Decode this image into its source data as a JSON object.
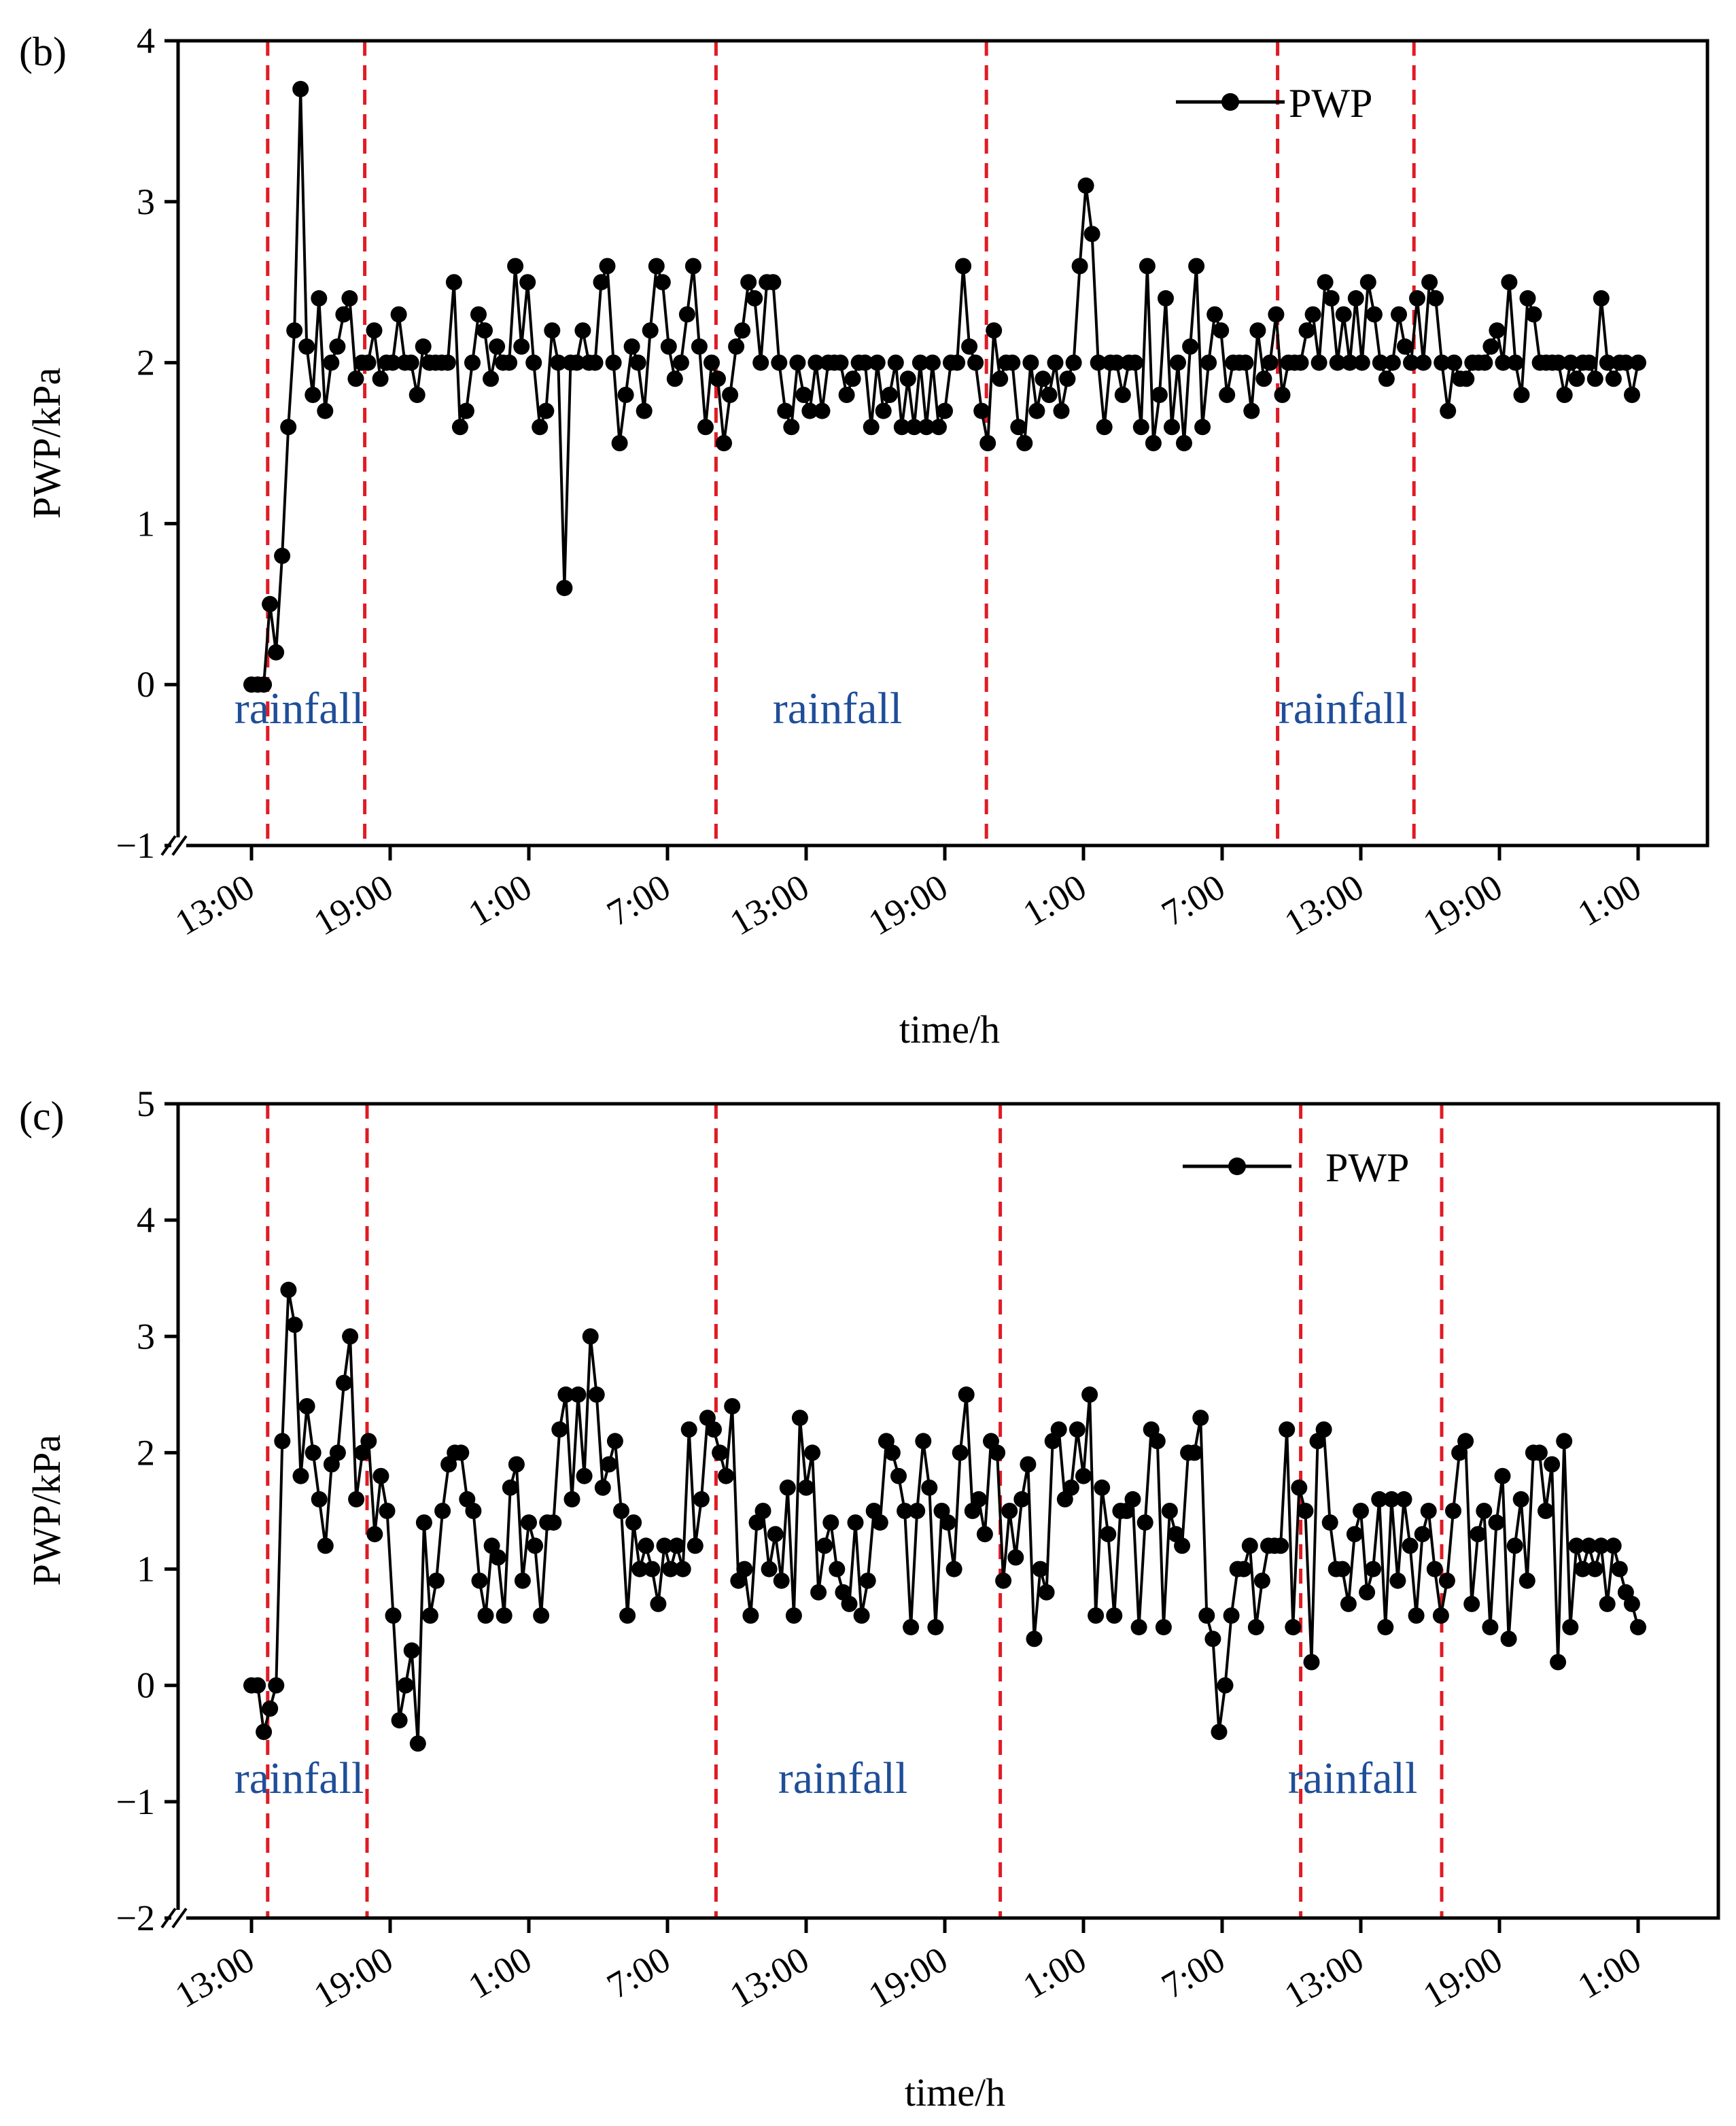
{
  "chart_data": [
    {
      "type": "line",
      "panel_label": "(b)",
      "title": "",
      "xlabel": "time/h",
      "ylabel": "PWP/kPa",
      "ylim": [
        -1,
        4
      ],
      "yticks": [
        -1,
        0,
        1,
        2,
        3,
        4
      ],
      "xtick_labels": [
        "13:00",
        "19:00",
        "1:00",
        "7:00",
        "13:00",
        "19:00",
        "1:00",
        "7:00",
        "13:00",
        "19:00",
        "1:00"
      ],
      "x_unit": "hours since first tick (13:00)",
      "x_range": [
        -1,
        61
      ],
      "legend": "PWP",
      "legend_position": "top-right",
      "rainfall_label": "rainfall",
      "rainfall_periods": [
        [
          0.7,
          4.9
        ],
        [
          20.1,
          31.8
        ],
        [
          44.4,
          50.3
        ]
      ],
      "colors": {
        "series": "#000000",
        "boundary": "#e01b24",
        "rainfall_text": "#1f4e99"
      },
      "series": [
        {
          "name": "PWP",
          "values": [
            0,
            0,
            0,
            0.5,
            0.2,
            0.8,
            1.6,
            2.2,
            3.7,
            2.1,
            1.8,
            2.4,
            1.7,
            2.0,
            2.1,
            2.3,
            2.4,
            1.9,
            2.0,
            2.0,
            2.2,
            1.9,
            2.0,
            2.0,
            2.3,
            2.0,
            2.0,
            1.8,
            2.1,
            2.0,
            2.0,
            2.0,
            2.0,
            2.5,
            1.6,
            1.7,
            2.0,
            2.3,
            2.2,
            1.9,
            2.1,
            2.0,
            2.0,
            2.6,
            2.1,
            2.5,
            2.0,
            1.6,
            1.7,
            2.2,
            2.0,
            0.6,
            2.0,
            2.0,
            2.2,
            2.0,
            2.0,
            2.5,
            2.6,
            2.0,
            1.5,
            1.8,
            2.1,
            2.0,
            1.7,
            2.2,
            2.6,
            2.5,
            2.1,
            1.9,
            2.0,
            2.3,
            2.6,
            2.1,
            1.6,
            2.0,
            1.9,
            1.5,
            1.8,
            2.1,
            2.2,
            2.5,
            2.4,
            2.0,
            2.5,
            2.5,
            2.0,
            1.7,
            1.6,
            2.0,
            1.8,
            1.7,
            2.0,
            1.7,
            2.0,
            2.0,
            2.0,
            1.8,
            1.9,
            2.0,
            2.0,
            1.6,
            2.0,
            1.7,
            1.8,
            2.0,
            1.6,
            1.9,
            1.6,
            2.0,
            1.6,
            2.0,
            1.6,
            1.7,
            2.0,
            2.0,
            2.6,
            2.1,
            2.0,
            1.7,
            1.5,
            2.2,
            1.9,
            2.0,
            2.0,
            1.6,
            1.5,
            2.0,
            1.7,
            1.9,
            1.8,
            2.0,
            1.7,
            1.9,
            2.0,
            2.6,
            3.1,
            2.8,
            2.0,
            1.6,
            2.0,
            2.0,
            1.8,
            2.0,
            2.0,
            1.6,
            2.6,
            1.5,
            1.8,
            2.4,
            1.6,
            2.0,
            1.5,
            2.1,
            2.6,
            1.6,
            2.0,
            2.3,
            2.2,
            1.8,
            2.0,
            2.0,
            2.0,
            1.7,
            2.2,
            1.9,
            2.0,
            2.3,
            1.8,
            2.0,
            2.0,
            2.0,
            2.2,
            2.3,
            2.0,
            2.5,
            2.4,
            2.0,
            2.3,
            2.0,
            2.4,
            2.0,
            2.5,
            2.3,
            2.0,
            1.9,
            2.0,
            2.3,
            2.1,
            2.0,
            2.4,
            2.0,
            2.5,
            2.4,
            2.0,
            1.7,
            2.0,
            1.9,
            1.9,
            2.0,
            2.0,
            2.0,
            2.1,
            2.2,
            2.0,
            2.5,
            2.0,
            1.8,
            2.4,
            2.3,
            2.0,
            2.0,
            2.0,
            2.0,
            1.8,
            2.0,
            1.9,
            2.0,
            2.0,
            1.9,
            2.4,
            2.0,
            1.9,
            2.0,
            2.0,
            1.8,
            2.0
          ]
        }
      ]
    },
    {
      "type": "line",
      "panel_label": "(c)",
      "title": "",
      "xlabel": "time/h",
      "ylabel": "PWP/kPa",
      "ylim": [
        -2,
        5
      ],
      "yticks": [
        -2,
        -1,
        0,
        1,
        2,
        3,
        4,
        5
      ],
      "xtick_labels": [
        "13:00",
        "19:00",
        "1:00",
        "7:00",
        "13:00",
        "19:00",
        "1:00",
        "7:00",
        "13:00",
        "19:00",
        "1:00"
      ],
      "x_unit": "hours since first tick (13:00)",
      "x_range": [
        -1,
        61
      ],
      "legend": "PWP",
      "legend_position": "top-right",
      "rainfall_label": "rainfall",
      "rainfall_periods": [
        [
          0.7,
          5.0
        ],
        [
          20.1,
          32.4
        ],
        [
          45.4,
          51.5
        ]
      ],
      "colors": {
        "series": "#000000",
        "boundary": "#e01b24",
        "rainfall_text": "#1f4e99"
      },
      "series": [
        {
          "name": "PWP",
          "values": [
            0,
            0,
            -0.4,
            -0.2,
            0,
            2.1,
            3.4,
            3.1,
            1.8,
            2.4,
            2.0,
            1.6,
            1.2,
            1.9,
            2.0,
            2.6,
            3.0,
            1.6,
            2.0,
            2.1,
            1.3,
            1.8,
            1.5,
            0.6,
            -0.3,
            0,
            0.3,
            -0.5,
            1.4,
            0.6,
            0.9,
            1.5,
            1.9,
            2.0,
            2.0,
            1.6,
            1.5,
            0.9,
            0.6,
            1.2,
            1.1,
            0.6,
            1.7,
            1.9,
            0.9,
            1.4,
            1.2,
            0.6,
            1.4,
            1.4,
            2.2,
            2.5,
            1.6,
            2.5,
            1.8,
            3.0,
            2.5,
            1.7,
            1.9,
            2.1,
            1.5,
            0.6,
            1.4,
            1.0,
            1.2,
            1.0,
            0.7,
            1.2,
            1.0,
            1.2,
            1.0,
            2.2,
            1.2,
            1.6,
            2.3,
            2.2,
            2.0,
            1.8,
            2.4,
            0.9,
            1.0,
            0.6,
            1.4,
            1.5,
            1.0,
            1.3,
            0.9,
            1.7,
            0.6,
            2.3,
            1.7,
            2.0,
            0.8,
            1.2,
            1.4,
            1.0,
            0.8,
            0.7,
            1.4,
            0.6,
            0.9,
            1.5,
            1.4,
            2.1,
            2.0,
            1.8,
            1.5,
            0.5,
            1.5,
            2.1,
            1.7,
            0.5,
            1.5,
            1.4,
            1.0,
            2.0,
            2.5,
            1.5,
            1.6,
            1.3,
            2.1,
            2.0,
            0.9,
            1.5,
            1.1,
            1.6,
            1.9,
            0.4,
            1.0,
            0.8,
            2.1,
            2.2,
            1.6,
            1.7,
            2.2,
            1.8,
            2.5,
            0.6,
            1.7,
            1.3,
            0.6,
            1.5,
            1.5,
            1.6,
            0.5,
            1.4,
            2.2,
            2.1,
            0.5,
            1.5,
            1.3,
            1.2,
            2.0,
            2.0,
            2.3,
            0.6,
            0.4,
            -0.4,
            0,
            0.6,
            1.0,
            1.0,
            1.2,
            0.5,
            0.9,
            1.2,
            1.2,
            1.2,
            2.2,
            0.5,
            1.7,
            1.5,
            0.2,
            2.1,
            2.2,
            1.4,
            1.0,
            1.0,
            0.7,
            1.3,
            1.5,
            0.8,
            1.0,
            1.6,
            0.5,
            1.6,
            0.9,
            1.6,
            1.2,
            0.6,
            1.3,
            1.5,
            1.0,
            0.6,
            0.9,
            1.5,
            2.0,
            2.1,
            0.7,
            1.3,
            1.5,
            0.5,
            1.4,
            1.8,
            0.4,
            1.2,
            1.6,
            0.9,
            2.0,
            2.0,
            1.5,
            1.9,
            0.2,
            2.1,
            0.5,
            1.2,
            1.0,
            1.2,
            1.0,
            1.2,
            0.7,
            1.2,
            1.0,
            0.8,
            0.7,
            0.5
          ]
        }
      ]
    }
  ]
}
